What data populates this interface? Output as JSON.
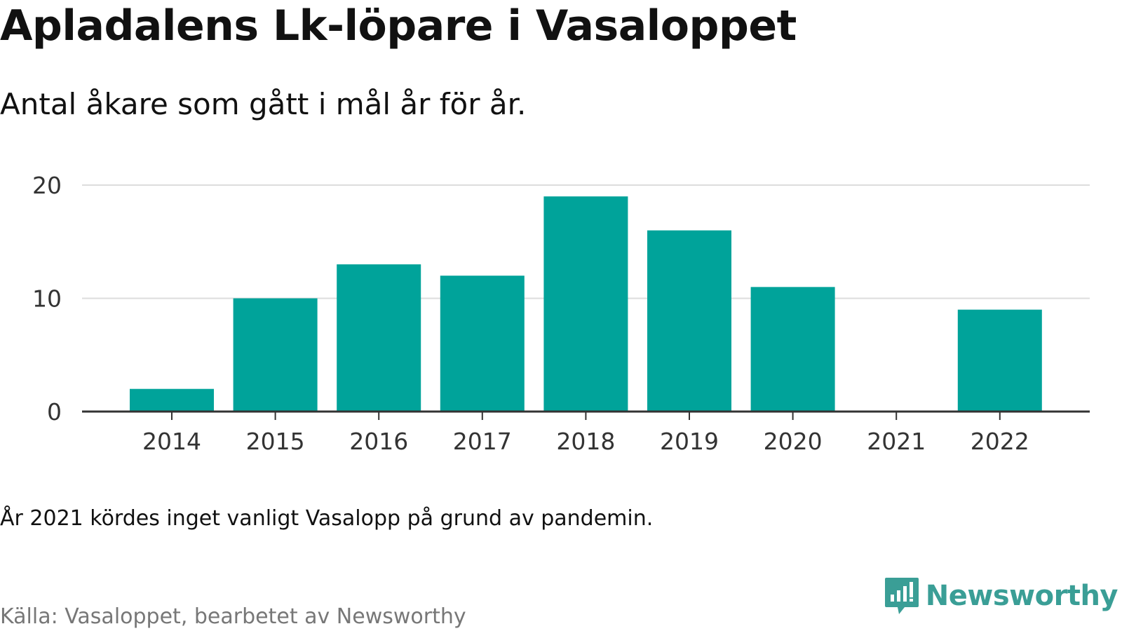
{
  "title": "Apladalens Lk-löpare i Vasaloppet",
  "subtitle": "Antal åkare som gått i mål år för år.",
  "note": "År 2021 kördes inget vanligt Vasalopp på grund av pandemin.",
  "source": "Källa: Vasaloppet, bearbetet av Newsworthy",
  "brand": {
    "name": "Newsworthy",
    "icon": "newsworthy-logo-icon",
    "color": "#3a9e96"
  },
  "colors": {
    "bar": "#00a39a",
    "grid": "#dddddd",
    "baseline": "#333333"
  },
  "chart_data": {
    "type": "bar",
    "title": "Apladalens Lk-löpare i Vasaloppet",
    "subtitle": "Antal åkare som gått i mål år för år.",
    "xlabel": "",
    "ylabel": "",
    "categories": [
      "2014",
      "2015",
      "2016",
      "2017",
      "2018",
      "2019",
      "2020",
      "2021",
      "2022"
    ],
    "values": [
      2,
      10,
      13,
      12,
      19,
      16,
      11,
      0,
      9
    ],
    "ylim": [
      0,
      20
    ],
    "yticks": [
      0,
      10,
      20
    ],
    "grid": true,
    "legend": "none"
  }
}
